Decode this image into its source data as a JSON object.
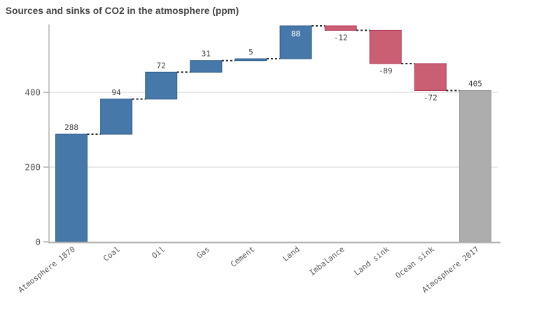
{
  "chart_data": {
    "type": "bar",
    "subtype": "waterfall",
    "title": "Sources and sinks of CO2 in the atmosphere (ppm)",
    "xlabel": "",
    "ylabel": "",
    "legend": false,
    "grid": true,
    "connector_style": "dashed",
    "categories": [
      "Atmosphere 1870",
      "Coal",
      "Oil",
      "Gas",
      "Cement",
      "Land",
      "Imbalance",
      "Land sink",
      "Ocean sink",
      "Atmosphere 2017"
    ],
    "values": [
      288,
      94,
      72,
      31,
      5,
      88,
      -12,
      -89,
      -72,
      405
    ],
    "value_labels": [
      "288",
      "94",
      "72",
      "31",
      "5",
      "88",
      "-12",
      "-89",
      "-72",
      "405"
    ],
    "bar_types": [
      "increase",
      "increase",
      "increase",
      "increase",
      "increase",
      "increase",
      "decrease",
      "decrease",
      "decrease",
      "total"
    ],
    "label_placement": [
      "above",
      "above",
      "above",
      "above",
      "above",
      "inside",
      "below",
      "below",
      "below",
      "above"
    ],
    "running_totals": [
      288,
      382,
      454,
      485,
      490,
      578,
      566,
      477,
      405,
      405
    ],
    "yticks": [
      0,
      200,
      400
    ],
    "ylim": [
      0,
      578
    ],
    "colors": {
      "increase_fill": "#4678aa",
      "increase_stroke": "#2b5c8a",
      "decrease_fill": "#ca5e73",
      "decrease_stroke": "#b13a57",
      "total_fill": "#adadad",
      "total_stroke": "#9c9c9c",
      "connector": "#2b2b2b",
      "grid_line": "#d8d8d8",
      "axis_line": "#b3b3b3",
      "tick_label": "#595959",
      "category_label": "#595959",
      "value_label": "#404040",
      "value_label_inside": "#ffffff",
      "title": "#404040"
    }
  }
}
